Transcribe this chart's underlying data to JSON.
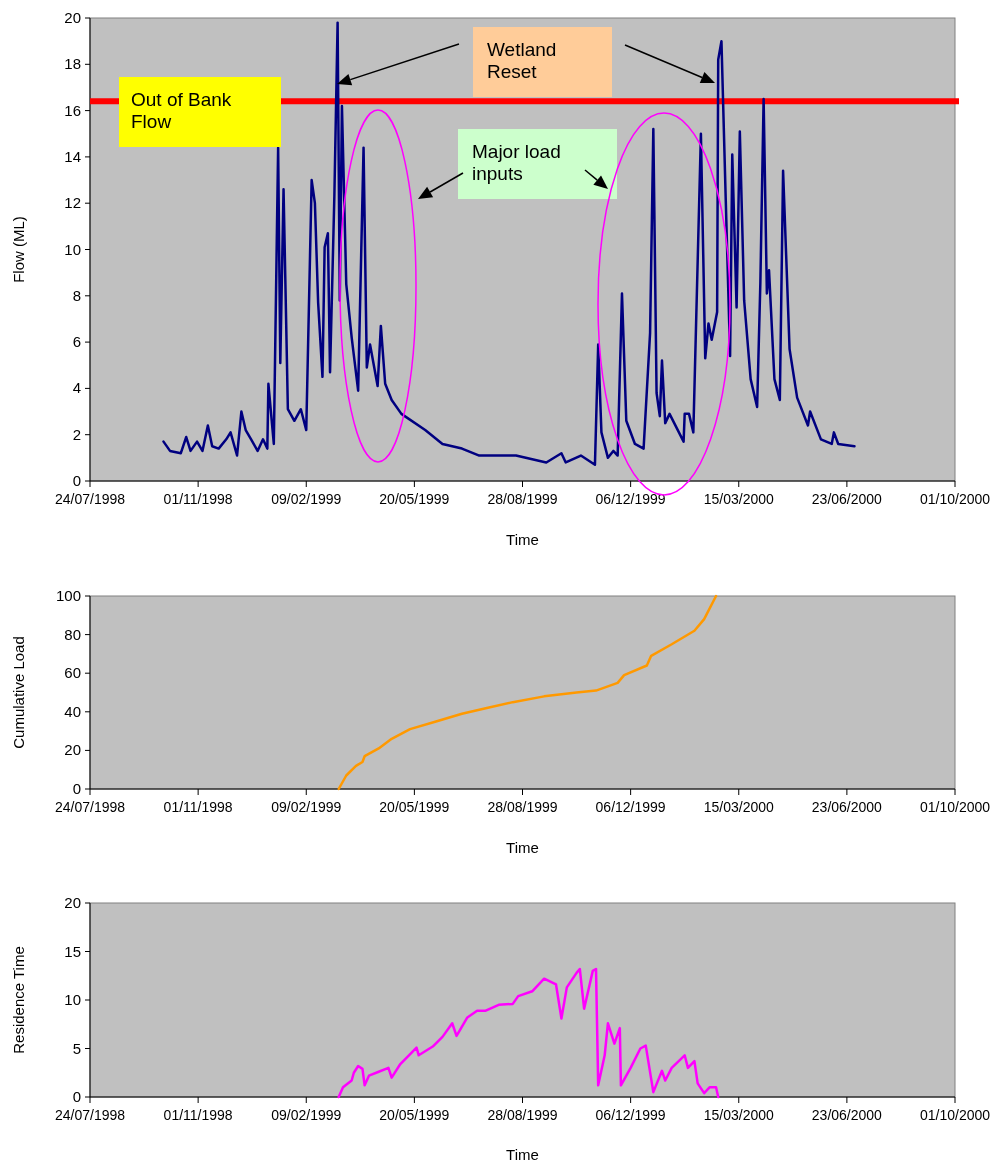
{
  "chart_data": [
    {
      "type": "line",
      "xlabel": "Time",
      "ylabel": "Flow (ML)",
      "xlim": [
        "1998-07-24",
        "2000-10-01"
      ],
      "ylim": [
        0,
        20
      ],
      "xticks": [
        {
          "value": "1998-07-24",
          "label": "24/07/1998"
        },
        {
          "value": "1998-11-01",
          "label": "01/11/1998"
        },
        {
          "value": "1999-02-09",
          "label": "09/02/1999"
        },
        {
          "value": "1999-05-20",
          "label": "20/05/1999"
        },
        {
          "value": "1999-08-28",
          "label": "28/08/1999"
        },
        {
          "value": "1999-12-06",
          "label": "06/12/1999"
        },
        {
          "value": "2000-03-15",
          "label": "15/03/2000"
        },
        {
          "value": "2000-06-23",
          "label": "23/06/2000"
        },
        {
          "value": "2000-10-01",
          "label": "01/10/2000"
        }
      ],
      "yticks": [
        0,
        2,
        4,
        6,
        8,
        10,
        12,
        14,
        16,
        18,
        20
      ],
      "grid": false,
      "ref_lines": [
        {
          "axis": "y",
          "value": 16.4,
          "label": "Out of Bank\nFlow",
          "color": "#ff0000"
        }
      ],
      "annotations": [
        "Wetland\nReset",
        "Major load\ninputs"
      ],
      "series": [
        {
          "color": "#000080",
          "x": [
            "1998-09-30",
            "1998-10-06",
            "1998-10-16",
            "1998-10-21",
            "1998-10-25",
            "1998-10-31",
            "1998-11-05",
            "1998-11-10",
            "1998-11-14",
            "1998-11-20",
            "1998-11-27",
            "1998-12-01",
            "1998-12-07",
            "1998-12-11",
            "1998-12-15",
            "1998-12-20",
            "1998-12-26",
            "1998-12-31",
            "1999-01-04",
            "1999-01-05",
            "1999-01-10",
            "1999-01-14",
            "1999-01-16",
            "1999-01-19",
            "1999-01-23",
            "1999-01-29",
            "1999-02-04",
            "1999-02-09",
            "1999-02-14",
            "1999-02-17",
            "1999-02-20",
            "1999-02-24",
            "1999-02-26",
            "1999-03-01",
            "1999-03-03",
            "1999-03-07",
            "1999-03-10",
            "1999-03-12",
            "1999-03-14",
            "1999-03-18",
            "1999-03-23",
            "1999-03-29",
            "1999-04-03",
            "1999-04-06",
            "1999-04-09",
            "1999-04-16",
            "1999-04-19",
            "1999-04-23",
            "1999-04-29",
            "1999-05-08",
            "1999-05-30",
            "1999-06-15",
            "1999-07-03",
            "1999-07-19",
            "1999-08-06",
            "1999-08-22",
            "1999-09-19",
            "1999-10-03",
            "1999-10-07",
            "1999-10-21",
            "1999-11-03",
            "1999-11-06",
            "1999-11-09",
            "1999-11-15",
            "1999-11-20",
            "1999-11-24",
            "1999-11-28",
            "1999-12-02",
            "1999-12-10",
            "1999-12-18",
            "1999-12-24",
            "1999-12-27",
            "1999-12-30",
            "2000-01-02",
            "2000-01-04",
            "2000-01-07",
            "2000-01-11",
            "2000-01-24",
            "2000-01-25",
            "2000-01-29",
            "2000-02-02",
            "2000-02-09",
            "2000-02-13",
            "2000-02-16",
            "2000-02-19",
            "2000-02-24",
            "2000-02-25",
            "2000-02-28",
            "2000-03-03",
            "2000-03-07",
            "2000-03-09",
            "2000-03-13",
            "2000-03-16",
            "2000-03-20",
            "2000-03-26",
            "2000-04-01",
            "2000-04-04",
            "2000-04-07",
            "2000-04-10",
            "2000-04-12",
            "2000-04-17",
            "2000-04-22",
            "2000-04-25",
            "2000-05-01",
            "2000-05-08",
            "2000-05-18",
            "2000-05-20",
            "2000-05-30",
            "2000-06-09",
            "2000-06-11",
            "2000-06-15",
            "2000-06-30"
          ],
          "values": [
            1.7,
            1.3,
            1.2,
            1.9,
            1.3,
            1.7,
            1.3,
            2.4,
            1.5,
            1.4,
            1.8,
            2.1,
            1.1,
            3.0,
            2.2,
            1.8,
            1.3,
            1.8,
            1.4,
            4.2,
            1.6,
            14.4,
            5.1,
            12.6,
            3.1,
            2.6,
            3.1,
            2.2,
            13.0,
            12.0,
            7.7,
            4.5,
            10.1,
            10.7,
            4.7,
            12.3,
            19.8,
            7.8,
            16.2,
            8.5,
            6.2,
            3.9,
            14.4,
            4.9,
            5.9,
            4.1,
            6.7,
            4.2,
            3.5,
            2.9,
            2.2,
            1.6,
            1.4,
            1.1,
            1.1,
            1.1,
            0.8,
            1.2,
            0.8,
            1.1,
            0.7,
            5.9,
            2.1,
            1.0,
            1.3,
            1.1,
            8.1,
            2.6,
            1.6,
            1.4,
            6.4,
            15.2,
            3.8,
            2.8,
            5.2,
            2.5,
            2.9,
            1.7,
            2.9,
            2.9,
            2.1,
            15.0,
            5.3,
            6.8,
            6.1,
            7.3,
            18.2,
            19.0,
            12.1,
            5.4,
            14.1,
            7.5,
            15.1,
            7.8,
            4.4,
            3.2,
            8.6,
            16.5,
            8.1,
            9.1,
            4.4,
            3.5,
            13.4,
            5.7,
            3.6,
            2.4,
            3.0,
            1.8,
            1.6,
            2.1,
            1.6,
            1.5
          ]
        }
      ]
    },
    {
      "type": "line",
      "xlabel": "Time",
      "ylabel": "Cumulative Load",
      "xlim": [
        "1998-07-24",
        "2000-10-01"
      ],
      "ylim": [
        0,
        100
      ],
      "xticks": [
        {
          "value": "1998-07-24",
          "label": "24/07/1998"
        },
        {
          "value": "1998-11-01",
          "label": "01/11/1998"
        },
        {
          "value": "1999-02-09",
          "label": "09/02/1999"
        },
        {
          "value": "1999-05-20",
          "label": "20/05/1999"
        },
        {
          "value": "1999-08-28",
          "label": "28/08/1999"
        },
        {
          "value": "1999-12-06",
          "label": "06/12/1999"
        },
        {
          "value": "2000-03-15",
          "label": "15/03/2000"
        },
        {
          "value": "2000-06-23",
          "label": "23/06/2000"
        },
        {
          "value": "2000-10-01",
          "label": "01/10/2000"
        }
      ],
      "yticks": [
        0,
        20,
        40,
        60,
        80,
        100
      ],
      "grid": false,
      "series": [
        {
          "color": "#ff9900",
          "x": [
            "1999-03-11",
            "1999-03-18",
            "1999-03-27",
            "1999-04-02",
            "1999-04-04",
            "1999-04-17",
            "1999-04-29",
            "1999-05-16",
            "1999-06-09",
            "1999-07-03",
            "1999-07-26",
            "1999-08-19",
            "1999-09-17",
            "1999-10-17",
            "1999-11-04",
            "1999-11-24",
            "1999-11-30",
            "1999-12-21",
            "1999-12-25",
            "2000-01-13",
            "2000-02-03",
            "2000-02-12",
            "2000-02-23"
          ],
          "values": [
            0,
            7,
            12,
            14,
            17,
            21,
            26,
            31,
            35,
            39,
            42,
            45,
            48,
            50,
            51,
            55,
            59,
            64,
            69,
            75,
            82,
            88,
            100
          ]
        }
      ]
    },
    {
      "type": "line",
      "xlabel": "Time",
      "ylabel": "Residence Time",
      "xlim": [
        "1998-07-24",
        "2000-10-01"
      ],
      "ylim": [
        0,
        20
      ],
      "xticks": [
        {
          "value": "1998-07-24",
          "label": "24/07/1998"
        },
        {
          "value": "1998-11-01",
          "label": "01/11/1998"
        },
        {
          "value": "1999-02-09",
          "label": "09/02/1999"
        },
        {
          "value": "1999-05-20",
          "label": "20/05/1999"
        },
        {
          "value": "1999-08-28",
          "label": "28/08/1999"
        },
        {
          "value": "1999-12-06",
          "label": "06/12/1999"
        },
        {
          "value": "2000-03-15",
          "label": "15/03/2000"
        },
        {
          "value": "2000-06-23",
          "label": "23/06/2000"
        },
        {
          "value": "2000-10-01",
          "label": "01/10/2000"
        }
      ],
      "yticks": [
        0,
        5,
        10,
        15,
        20
      ],
      "grid": false,
      "series": [
        {
          "color": "#ff00ff",
          "x": [
            "1999-03-11",
            "1999-03-15",
            "1999-03-23",
            "1999-03-25",
            "1999-03-29",
            "1999-04-02",
            "1999-04-04",
            "1999-04-08",
            "1999-04-17",
            "1999-04-26",
            "1999-04-29",
            "1999-05-07",
            "1999-05-22",
            "1999-05-24",
            "1999-06-06",
            "1999-06-15",
            "1999-06-24",
            "1999-06-28",
            "1999-07-08",
            "1999-07-17",
            "1999-07-25",
            "1999-08-06",
            "1999-08-19",
            "1999-08-24",
            "1999-09-06",
            "1999-09-17",
            "1999-09-28",
            "1999-10-03",
            "1999-10-08",
            "1999-10-17",
            "1999-10-20",
            "1999-10-24",
            "1999-11-01",
            "1999-11-04",
            "1999-11-06",
            "1999-11-12",
            "1999-11-15",
            "1999-11-21",
            "1999-11-26",
            "1999-11-27",
            "1999-12-06",
            "1999-12-15",
            "1999-12-20",
            "1999-12-27",
            "2000-01-04",
            "2000-01-07",
            "2000-01-13",
            "2000-01-25",
            "2000-01-28",
            "2000-02-03",
            "2000-02-06",
            "2000-02-12",
            "2000-02-17",
            "2000-02-23",
            "2000-02-25"
          ],
          "values": [
            0,
            1.0,
            1.7,
            2.5,
            3.2,
            2.9,
            1.2,
            2.2,
            2.6,
            3.0,
            2.0,
            3.4,
            5.1,
            4.3,
            5.2,
            6.2,
            7.6,
            6.3,
            8.2,
            8.9,
            8.9,
            9.5,
            9.6,
            10.4,
            10.9,
            12.2,
            11.6,
            8.1,
            11.3,
            12.8,
            13.2,
            9.1,
            13.0,
            13.2,
            1.2,
            4.3,
            7.6,
            5.5,
            7.1,
            1.2,
            3.0,
            5.0,
            5.3,
            0.5,
            2.7,
            1.7,
            3.0,
            4.3,
            3.0,
            3.7,
            1.4,
            0.4,
            1.0,
            1.0,
            0
          ]
        }
      ]
    }
  ]
}
